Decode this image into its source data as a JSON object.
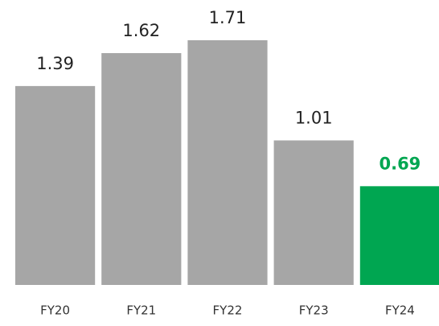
{
  "chart_data": {
    "type": "bar",
    "categories": [
      "FY20",
      "FY21",
      "FY22",
      "FY23",
      "FY24"
    ],
    "values": [
      1.39,
      1.62,
      1.71,
      1.01,
      0.69
    ],
    "colors": [
      "#a6a6a6",
      "#a6a6a6",
      "#a6a6a6",
      "#a6a6a6",
      "#00a651"
    ]
  }
}
